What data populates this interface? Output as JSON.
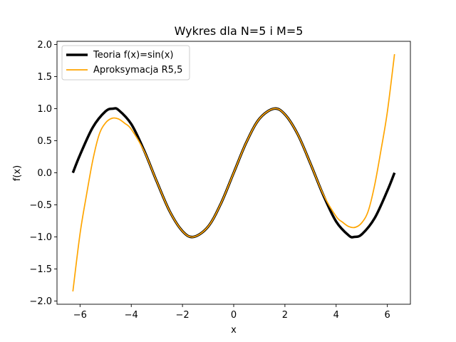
{
  "chart_data": {
    "type": "line",
    "title": "Wykres dla N=5 i M=5",
    "xlabel": "x",
    "ylabel": "f(x)",
    "xlim": [
      -6.9,
      6.9
    ],
    "ylim": [
      -2.05,
      2.05
    ],
    "xticks": [
      -6,
      -4,
      -2,
      0,
      2,
      4,
      6
    ],
    "xtick_labels": [
      "−6",
      "−4",
      "−2",
      "0",
      "2",
      "4",
      "6"
    ],
    "yticks": [
      -2.0,
      -1.5,
      -1.0,
      -0.5,
      0.0,
      0.5,
      1.0,
      1.5,
      2.0
    ],
    "ytick_labels": [
      "−2.0",
      "−1.5",
      "−1.0",
      "−0.5",
      "0.0",
      "0.5",
      "1.0",
      "1.5",
      "2.0"
    ],
    "grid": false,
    "legend_position": "top-left",
    "series": [
      {
        "name": "Teoria f(x)=sin(x)",
        "color": "#000000",
        "x": [
          -6.28,
          -6.0,
          -5.5,
          -5.0,
          -4.71,
          -4.5,
          -4.0,
          -3.5,
          -3.0,
          -2.5,
          -2.0,
          -1.57,
          -1.0,
          -0.5,
          0.0,
          0.5,
          1.0,
          1.57,
          2.0,
          2.5,
          3.0,
          3.5,
          4.0,
          4.5,
          4.71,
          5.0,
          5.5,
          6.0,
          6.28
        ],
        "y": [
          0.0,
          0.28,
          0.71,
          0.96,
          1.0,
          0.98,
          0.76,
          0.35,
          -0.14,
          -0.6,
          -0.91,
          -1.0,
          -0.84,
          -0.48,
          0.0,
          0.48,
          0.84,
          1.0,
          0.91,
          0.6,
          0.14,
          -0.35,
          -0.76,
          -0.98,
          -1.0,
          -0.96,
          -0.71,
          -0.28,
          0.0
        ]
      },
      {
        "name": "Aproksymacja R5,5",
        "color": "#ffa500",
        "x": [
          -6.28,
          -6.0,
          -5.75,
          -5.5,
          -5.25,
          -5.0,
          -4.75,
          -4.5,
          -4.25,
          -4.0,
          -3.5,
          -3.0,
          -2.5,
          -2.0,
          -1.57,
          -1.0,
          -0.5,
          0.0,
          0.5,
          1.0,
          1.57,
          2.0,
          2.5,
          3.0,
          3.5,
          4.0,
          4.25,
          4.5,
          4.75,
          5.0,
          5.25,
          5.5,
          5.75,
          6.0,
          6.28
        ],
        "y": [
          -1.85,
          -0.95,
          -0.35,
          0.2,
          0.6,
          0.78,
          0.85,
          0.84,
          0.77,
          0.68,
          0.34,
          -0.14,
          -0.6,
          -0.91,
          -1.0,
          -0.84,
          -0.48,
          0.0,
          0.48,
          0.84,
          1.0,
          0.91,
          0.6,
          0.14,
          -0.34,
          -0.68,
          -0.77,
          -0.84,
          -0.85,
          -0.78,
          -0.6,
          -0.2,
          0.35,
          0.95,
          1.85
        ]
      }
    ]
  }
}
